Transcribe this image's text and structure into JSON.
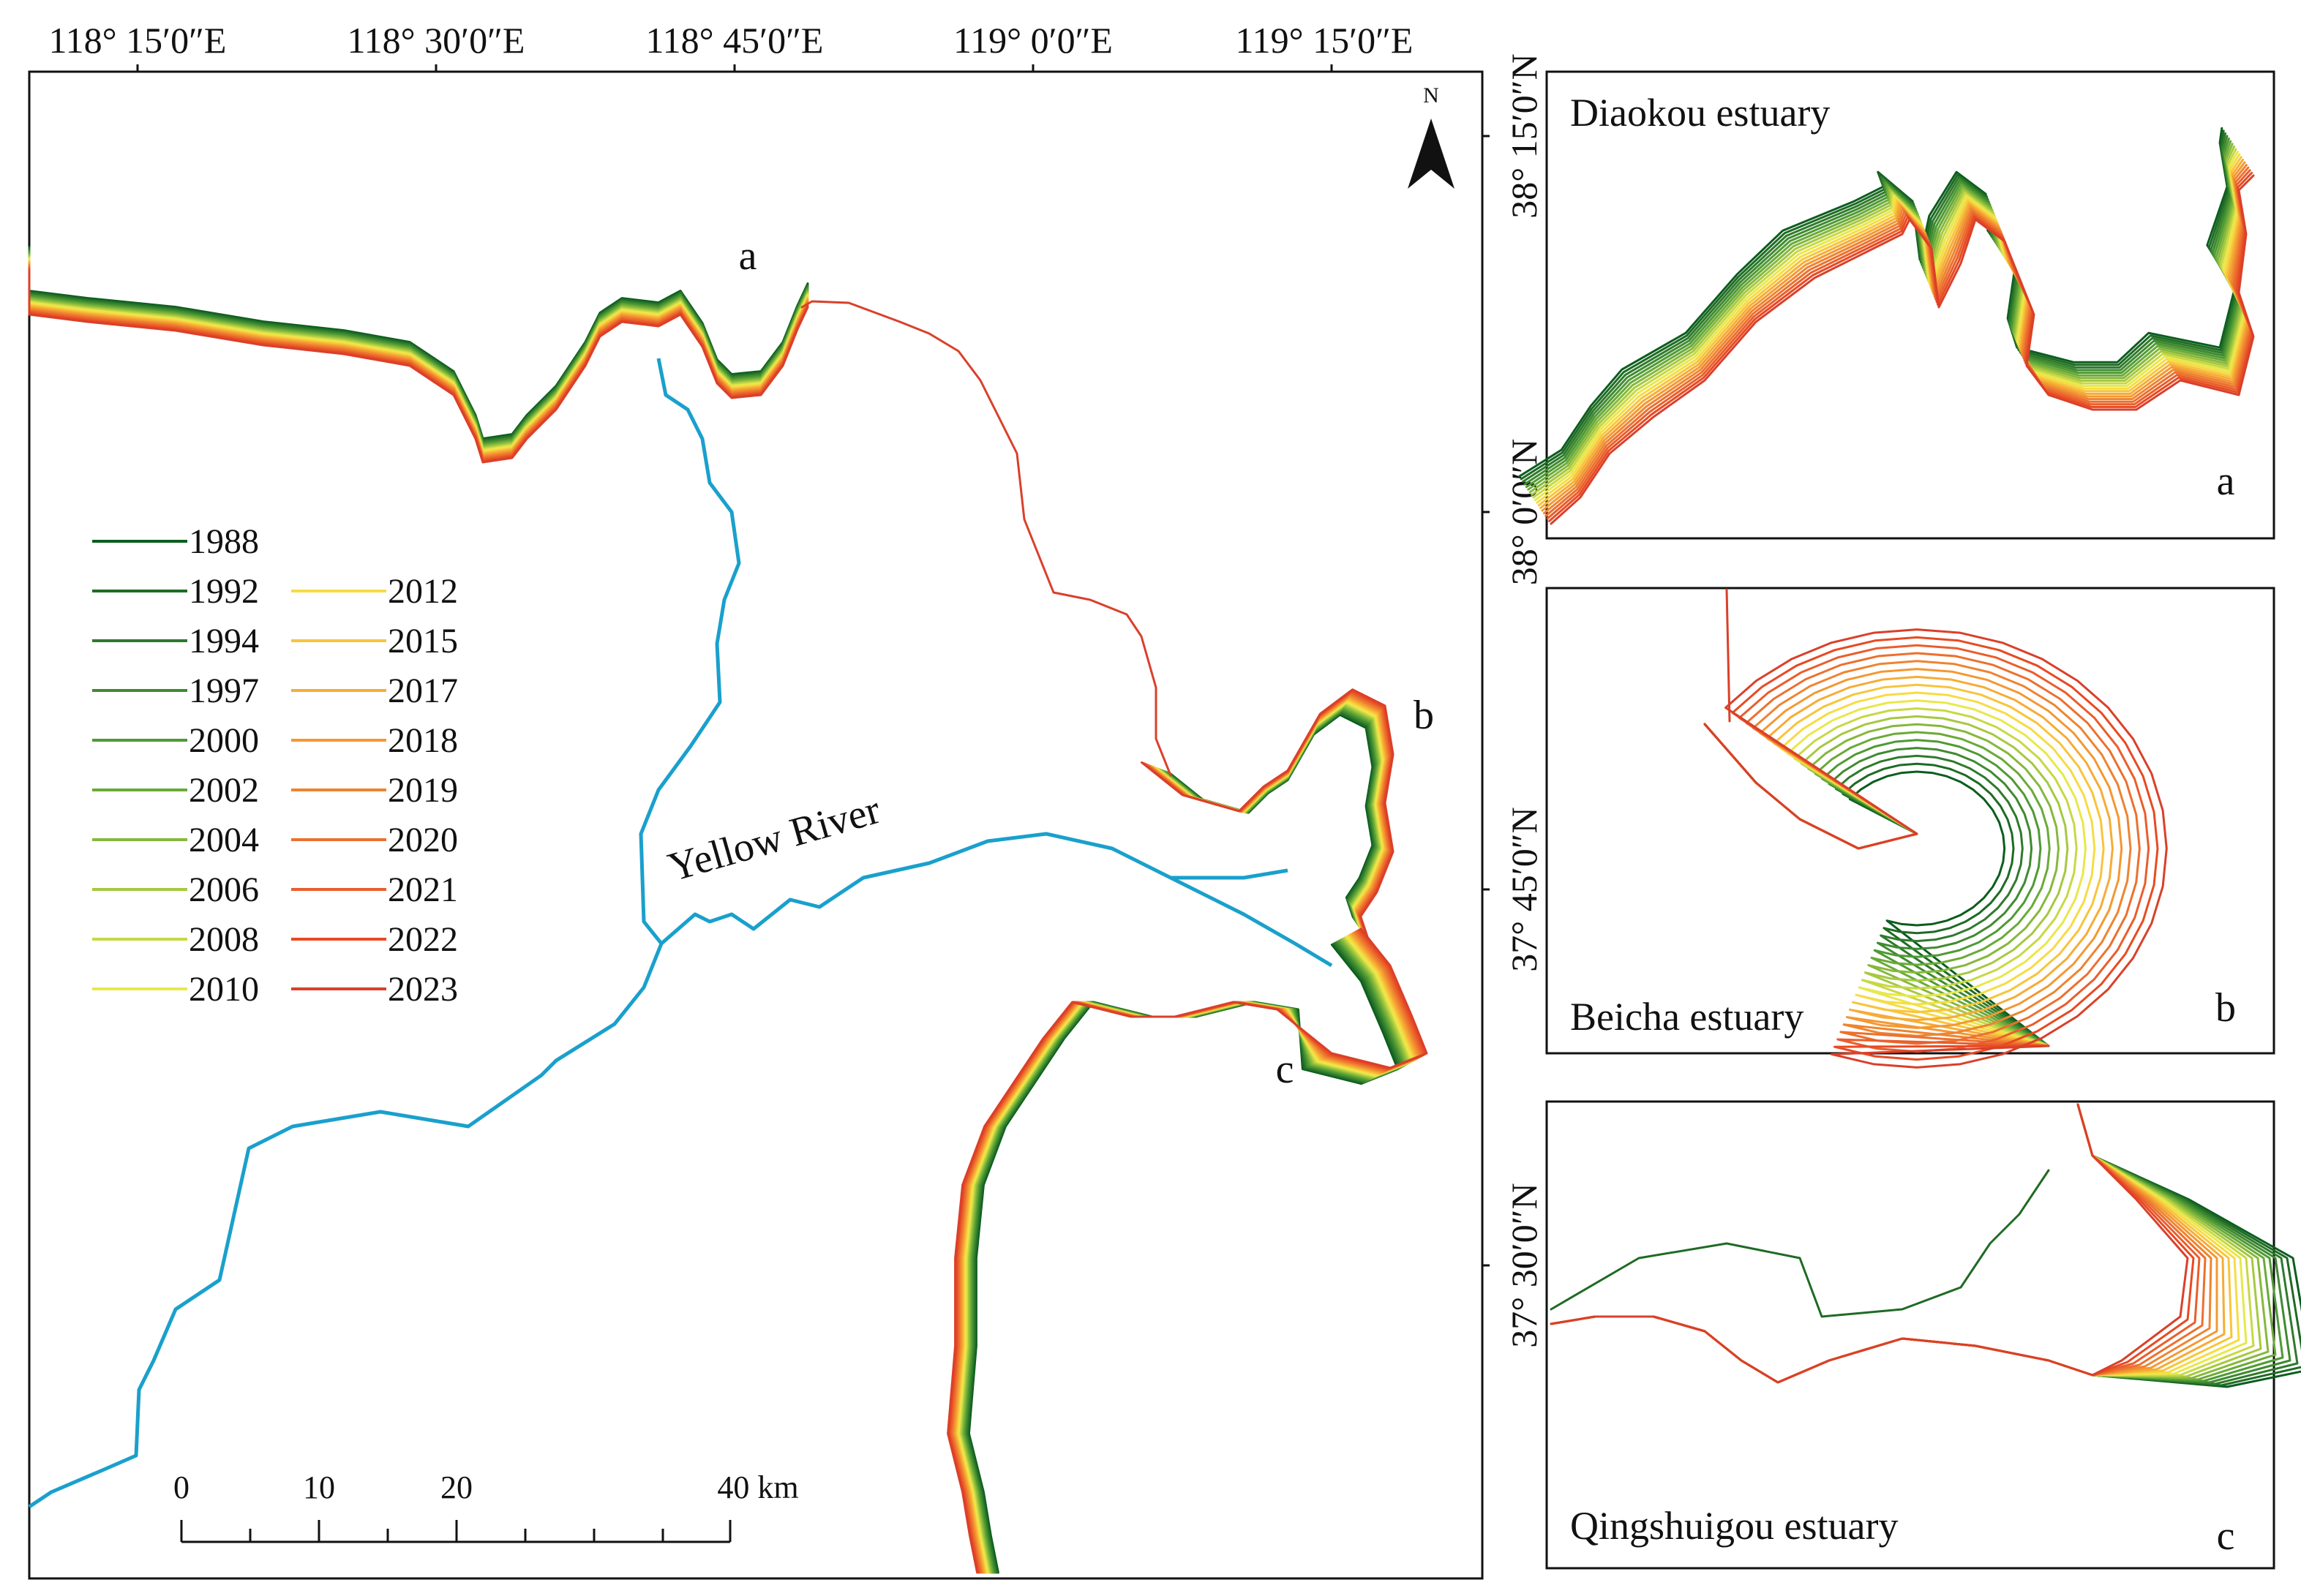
{
  "main_map": {
    "top_labels": [
      "118°  15′0″E",
      "118°  30′0″E",
      "118°  45′0″E",
      "119°  0′0″E",
      "119°  15′0″E"
    ],
    "right_labels": [
      "38°  15′0″N",
      "38°  0′0″N",
      "37°  45′0″N",
      "37°  30′0″N"
    ],
    "north_label": "N",
    "region_labels": [
      "a",
      "b",
      "c"
    ],
    "river_label": "Yellow River",
    "scale_bar": {
      "labels": [
        "0",
        "10",
        "20",
        "40 km"
      ]
    }
  },
  "legend": {
    "years": [
      "1988",
      "1992",
      "1994",
      "1997",
      "2000",
      "2002",
      "2004",
      "2006",
      "2008",
      "2010",
      "2012",
      "2015",
      "2017",
      "2018",
      "2019",
      "2020",
      "2021",
      "2022",
      "2023"
    ],
    "colors": [
      "#0b5d1e",
      "#1e6b24",
      "#2f7a2c",
      "#3f8a30",
      "#4f9a34",
      "#6aaa38",
      "#86b83c",
      "#a6c840",
      "#c8d844",
      "#e8e84a",
      "#f6dc44",
      "#f7c53c",
      "#f6ac36",
      "#f39832",
      "#ee8430",
      "#ec702e",
      "#e95e2c",
      "#e84a22",
      "#d9402a"
    ]
  },
  "insets": [
    {
      "title": "Diaokou estuary",
      "letter": "a"
    },
    {
      "title": "Beicha estuary",
      "letter": "b"
    },
    {
      "title": "Qingshuigou estuary",
      "letter": "c"
    }
  ]
}
